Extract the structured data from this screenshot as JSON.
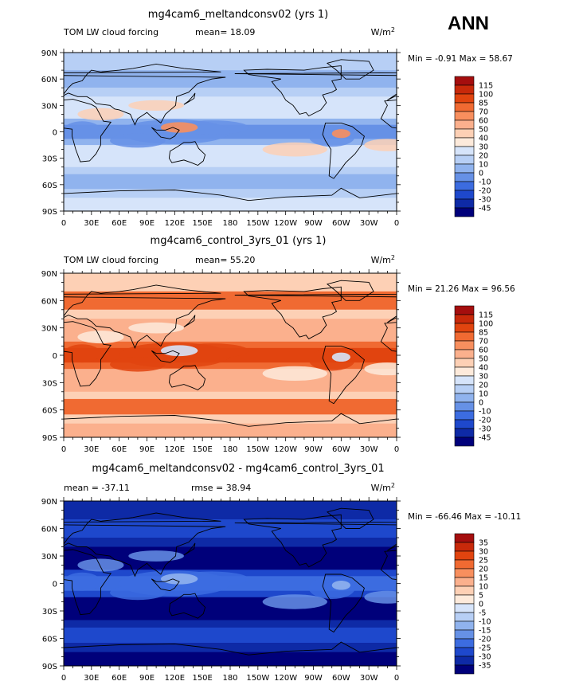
{
  "season_label": "ANN",
  "x_tick_labels": [
    "0",
    "30E",
    "60E",
    "90E",
    "120E",
    "150E",
    "180",
    "150W",
    "120W",
    "90W",
    "60W",
    "30W",
    "0"
  ],
  "y_tick_labels": [
    "90N",
    "60N",
    "30N",
    "0",
    "30S",
    "60S",
    "90S"
  ],
  "chart_data": [
    {
      "type": "heatmap",
      "title": "mg4cam6_meltandconsv02 (yrs 1)",
      "field_label": "TOM LW cloud forcing",
      "stat1_label": "mean=",
      "stat1_value": "18.09",
      "stat2_label": "",
      "stat2_value": "",
      "units": "W/m",
      "units_sup": "2",
      "minmax": "Min =  -0.91 Max =  58.67",
      "min": -0.91,
      "max": 58.67,
      "mean": 18.09,
      "colorbar_levels": [
        "115",
        "100",
        "85",
        "70",
        "60",
        "50",
        "40",
        "30",
        "20",
        "10",
        "0",
        "-10",
        "-20",
        "-30",
        "-45"
      ],
      "colorbar_colors": [
        "#a50e0e",
        "#c8290a",
        "#e1440f",
        "#f06a32",
        "#f88f5e",
        "#fbb08d",
        "#fdd0b5",
        "#fdeadb",
        "#d6e4fa",
        "#b7cff5",
        "#90b3ee",
        "#6691e6",
        "#3c6ce0",
        "#1e48cc",
        "#0e2aa6",
        "#00007a"
      ],
      "field_colors": {
        "base": "#d6e4fa",
        "mid": "#b7cff5",
        "band": "#90b3ee",
        "deep": "#6691e6",
        "warm": "#fdd0b5",
        "hot": "#f88f5e"
      }
    },
    {
      "type": "heatmap",
      "title": "mg4cam6_control_3yrs_01 (yrs 1)",
      "field_label": "TOM LW cloud forcing",
      "stat1_label": "mean=",
      "stat1_value": "55.20",
      "stat2_label": "",
      "stat2_value": "",
      "units": "W/m",
      "units_sup": "2",
      "minmax": "Min =  21.26 Max =  96.56",
      "min": 21.26,
      "max": 96.56,
      "mean": 55.2,
      "colorbar_levels": [
        "115",
        "100",
        "85",
        "70",
        "60",
        "50",
        "40",
        "30",
        "20",
        "10",
        "0",
        "-10",
        "-20",
        "-30",
        "-45"
      ],
      "colorbar_colors": [
        "#a50e0e",
        "#c8290a",
        "#e1440f",
        "#f06a32",
        "#f88f5e",
        "#fbb08d",
        "#fdd0b5",
        "#fdeadb",
        "#d6e4fa",
        "#b7cff5",
        "#90b3ee",
        "#6691e6",
        "#3c6ce0",
        "#1e48cc",
        "#0e2aa6",
        "#00007a"
      ],
      "field_colors": {
        "base": "#fbb08d",
        "mid": "#fdd0b5",
        "band": "#f06a32",
        "deep": "#e1440f",
        "warm": "#fdeadb",
        "hot": "#d6e4fa"
      }
    },
    {
      "type": "heatmap",
      "title": "mg4cam6_meltandconsv02 - mg4cam6_control_3yrs_01",
      "field_label": "",
      "stat1_label": "mean =",
      "stat1_value": "-37.11",
      "stat2_label": "rmse =",
      "stat2_value": "38.94",
      "units": "W/m",
      "units_sup": "2",
      "minmax": "Min = -66.46 Max = -10.11",
      "min": -66.46,
      "max": -10.11,
      "mean": -37.11,
      "colorbar_levels": [
        "35",
        "30",
        "25",
        "20",
        "15",
        "10",
        "5",
        "0",
        "-5",
        "-10",
        "-15",
        "-20",
        "-25",
        "-30",
        "-35"
      ],
      "colorbar_colors": [
        "#a50e0e",
        "#c8290a",
        "#e1440f",
        "#f06a32",
        "#f88f5e",
        "#fbb08d",
        "#fdd0b5",
        "#fdeadb",
        "#d6e4fa",
        "#b7cff5",
        "#90b3ee",
        "#6691e6",
        "#3c6ce0",
        "#1e48cc",
        "#0e2aa6",
        "#00007a"
      ],
      "field_colors": {
        "base": "#00007a",
        "mid": "#0e2aa6",
        "band": "#1e48cc",
        "deep": "#3c6ce0",
        "warm": "#6691e6",
        "hot": "#90b3ee"
      }
    }
  ]
}
